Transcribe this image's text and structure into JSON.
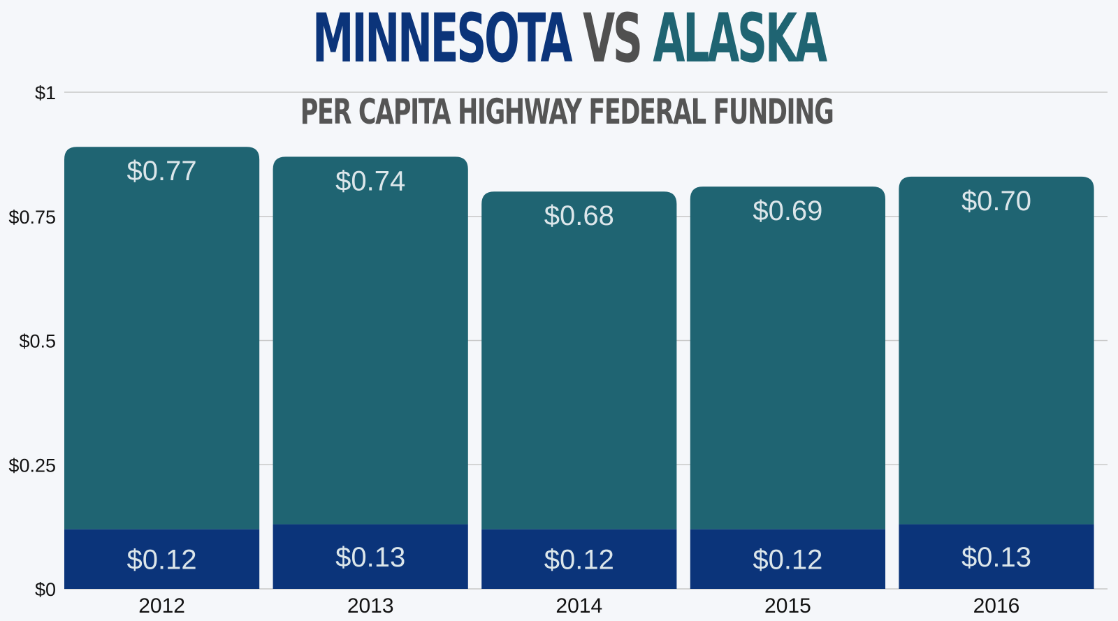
{
  "title": {
    "part1": "MINNESOTA",
    "part2": "VS",
    "part3": "ALASKA"
  },
  "subtitle": "PER CAPITA HIGHWAY FEDERAL FUNDING",
  "colors": {
    "minnesota": "#0b347a",
    "alaska": "#1f6472",
    "vs": "#505050",
    "grid": "#c8c8c8",
    "label": "#dce6ea"
  },
  "chart_data": {
    "type": "bar",
    "stacked": true,
    "categories": [
      "2012",
      "2013",
      "2014",
      "2015",
      "2016"
    ],
    "series": [
      {
        "name": "MINNESOTA",
        "values": [
          0.12,
          0.13,
          0.12,
          0.12,
          0.13
        ],
        "labels": [
          "$0.12",
          "$0.13",
          "$0.12",
          "$0.12",
          "$0.13"
        ]
      },
      {
        "name": "ALASKA",
        "values": [
          0.77,
          0.74,
          0.68,
          0.69,
          0.7
        ],
        "labels": [
          "$0.77",
          "$0.74",
          "$0.68",
          "$0.69",
          "$0.70"
        ]
      }
    ],
    "ylim": [
      0,
      1
    ],
    "yticks": [
      0,
      0.25,
      0.5,
      0.75,
      1
    ],
    "ytick_labels": [
      "$0",
      "$0.25",
      "$0.5",
      "$0.75",
      "$1"
    ],
    "grid": true,
    "xlabel": "",
    "ylabel": ""
  }
}
